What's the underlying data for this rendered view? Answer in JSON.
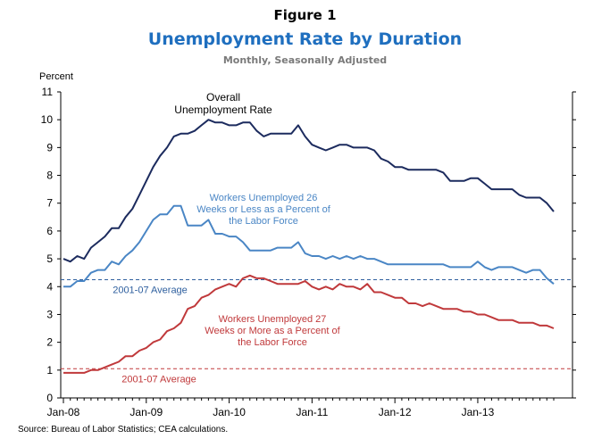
{
  "figure_label": "Figure 1",
  "title": "Unemployment Rate by Duration",
  "subtitle": "Monthly, Seasonally Adjusted",
  "source": "Source: Bureau of Labor Statistics; CEA calculations.",
  "chart_data": {
    "type": "line",
    "ylabel": "Percent",
    "ylim": [
      0,
      11
    ],
    "yticks": [
      0,
      1,
      2,
      3,
      4,
      5,
      6,
      7,
      8,
      9,
      10,
      11
    ],
    "xlim": [
      0,
      71
    ],
    "xticks": [
      {
        "label": "Jan-08",
        "x": 0
      },
      {
        "label": "Jan-09",
        "x": 12
      },
      {
        "label": "Jan-10",
        "x": 24
      },
      {
        "label": "Jan-11",
        "x": 36
      },
      {
        "label": "Jan-12",
        "x": 48
      },
      {
        "label": "Jan-13",
        "x": 60
      }
    ],
    "series": [
      {
        "label_lines": [
          "Overall",
          "Unemployment Rate"
        ],
        "color": "#1c2b5e",
        "values": [
          5.0,
          4.9,
          5.1,
          5.0,
          5.4,
          5.6,
          5.8,
          6.1,
          6.1,
          6.5,
          6.8,
          7.3,
          7.8,
          8.3,
          8.7,
          9.0,
          9.4,
          9.5,
          9.5,
          9.6,
          9.8,
          10.0,
          9.9,
          9.9,
          9.8,
          9.8,
          9.9,
          9.9,
          9.6,
          9.4,
          9.5,
          9.5,
          9.5,
          9.5,
          9.8,
          9.4,
          9.1,
          9.0,
          8.9,
          9.0,
          9.1,
          9.1,
          9.0,
          9.0,
          9.0,
          8.9,
          8.6,
          8.5,
          8.3,
          8.3,
          8.2,
          8.2,
          8.2,
          8.2,
          8.2,
          8.1,
          7.8,
          7.8,
          7.8,
          7.9,
          7.9,
          7.7,
          7.5,
          7.5,
          7.5,
          7.5,
          7.3,
          7.2,
          7.2,
          7.2,
          7.0,
          6.7
        ]
      },
      {
        "label_lines": [
          "Workers Unemployed 26",
          "Weeks or Less as a Percent of",
          "the Labor Force"
        ],
        "color": "#4a86c5",
        "values": [
          4.0,
          4.0,
          4.2,
          4.2,
          4.5,
          4.6,
          4.6,
          4.9,
          4.8,
          5.1,
          5.3,
          5.6,
          6.0,
          6.4,
          6.6,
          6.6,
          6.9,
          6.9,
          6.2,
          6.2,
          6.2,
          6.4,
          5.9,
          5.9,
          5.8,
          5.8,
          5.6,
          5.3,
          5.3,
          5.3,
          5.3,
          5.4,
          5.4,
          5.4,
          5.6,
          5.2,
          5.1,
          5.1,
          5.0,
          5.1,
          5.0,
          5.1,
          5.0,
          5.1,
          5.0,
          5.0,
          4.9,
          4.8,
          4.8,
          4.8,
          4.8,
          4.8,
          4.8,
          4.8,
          4.8,
          4.8,
          4.7,
          4.7,
          4.7,
          4.7,
          4.9,
          4.7,
          4.6,
          4.7,
          4.7,
          4.7,
          4.6,
          4.5,
          4.6,
          4.6,
          4.3,
          4.1
        ]
      },
      {
        "label_lines": [
          "Workers Unemployed 27",
          "Weeks or More as a Percent of",
          "the Labor Force"
        ],
        "color": "#c0393b",
        "values": [
          0.9,
          0.9,
          0.9,
          0.9,
          1.0,
          1.0,
          1.1,
          1.2,
          1.3,
          1.5,
          1.5,
          1.7,
          1.8,
          2.0,
          2.1,
          2.4,
          2.5,
          2.7,
          3.2,
          3.3,
          3.6,
          3.7,
          3.9,
          4.0,
          4.1,
          4.0,
          4.3,
          4.4,
          4.3,
          4.3,
          4.2,
          4.1,
          4.1,
          4.1,
          4.1,
          4.2,
          4.0,
          3.9,
          4.0,
          3.9,
          4.1,
          4.0,
          4.0,
          3.9,
          4.1,
          3.8,
          3.8,
          3.7,
          3.6,
          3.6,
          3.4,
          3.4,
          3.3,
          3.4,
          3.3,
          3.2,
          3.2,
          3.2,
          3.1,
          3.1,
          3.0,
          3.0,
          2.9,
          2.8,
          2.8,
          2.8,
          2.7,
          2.7,
          2.7,
          2.6,
          2.6,
          2.5
        ]
      }
    ],
    "reference_lines": [
      {
        "label": "2001-07 Average",
        "value": 4.25,
        "color": "#2e5f9e"
      },
      {
        "label": "2001-07 Average",
        "value": 1.05,
        "color": "#c0393b"
      }
    ],
    "grid": false
  }
}
